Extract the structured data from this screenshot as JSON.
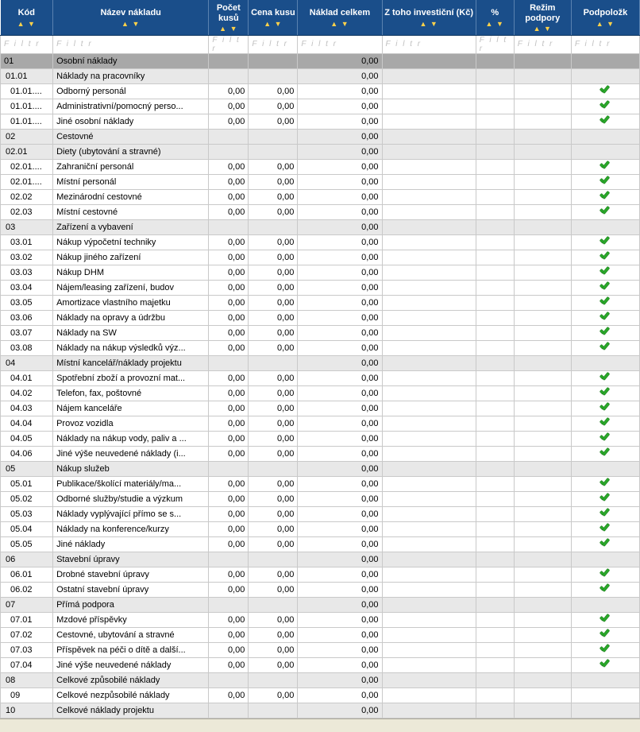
{
  "filter_placeholder": "F i l t r",
  "colors": {
    "header_bg": "#1a4e8a",
    "sort_arrows": "#ffd24a",
    "lvl0": "#a8a8a8",
    "lvl1": "#e8e8e8",
    "lvl2": "#ffffff",
    "border": "#c9c9c9",
    "check": "#2aa82a"
  },
  "columns": [
    {
      "key": "kod",
      "label": "Kód",
      "cls": "c-kod"
    },
    {
      "key": "name",
      "label": "Název nákladu",
      "cls": "c-name"
    },
    {
      "key": "cnt",
      "label": "Počet kusů",
      "cls": "c-cnt"
    },
    {
      "key": "price",
      "label": "Cena kusu",
      "cls": "c-price"
    },
    {
      "key": "total",
      "label": "Náklad celkem",
      "cls": "c-total"
    },
    {
      "key": "inv",
      "label": "Z toho investiční (Kč)",
      "cls": "c-inv"
    },
    {
      "key": "pct",
      "label": "%",
      "cls": "c-pct"
    },
    {
      "key": "mode",
      "label": "Režim podpory",
      "cls": "c-mode"
    },
    {
      "key": "sub",
      "label": "Podpoložk",
      "cls": "c-sub"
    }
  ],
  "rows": [
    {
      "lvl": 0,
      "kod": "01",
      "name": "Osobní náklady",
      "total": "0,00"
    },
    {
      "lvl": 1,
      "kod": "01.01",
      "name": "Náklady na pracovníky",
      "total": "0,00"
    },
    {
      "lvl": 2,
      "kod": "01.01....",
      "name": "Odborný personál",
      "cnt": "0,00",
      "price": "0,00",
      "total": "0,00",
      "sub": true
    },
    {
      "lvl": 2,
      "kod": "01.01....",
      "name": "Administrativní/pomocný perso...",
      "cnt": "0,00",
      "price": "0,00",
      "total": "0,00",
      "sub": true
    },
    {
      "lvl": 2,
      "kod": "01.01....",
      "name": "Jiné osobní náklady",
      "cnt": "0,00",
      "price": "0,00",
      "total": "0,00",
      "sub": true
    },
    {
      "lvl": 1,
      "kod": "02",
      "name": "Cestovné",
      "total": "0,00"
    },
    {
      "lvl": 1,
      "kod": "02.01",
      "name": "Diety (ubytování a stravné)",
      "total": "0,00"
    },
    {
      "lvl": 2,
      "kod": "02.01....",
      "name": "Zahraniční personál",
      "cnt": "0,00",
      "price": "0,00",
      "total": "0,00",
      "sub": true
    },
    {
      "lvl": 2,
      "kod": "02.01....",
      "name": "Místní personál",
      "cnt": "0,00",
      "price": "0,00",
      "total": "0,00",
      "sub": true
    },
    {
      "lvl": 2,
      "kod": "02.02",
      "name": "Mezinárodní cestovné",
      "cnt": "0,00",
      "price": "0,00",
      "total": "0,00",
      "sub": true
    },
    {
      "lvl": 2,
      "kod": "02.03",
      "name": "Místní cestovné",
      "cnt": "0,00",
      "price": "0,00",
      "total": "0,00",
      "sub": true
    },
    {
      "lvl": 1,
      "kod": "03",
      "name": "Zařízení a vybavení",
      "total": "0,00"
    },
    {
      "lvl": 2,
      "kod": "03.01",
      "name": "Nákup výpočetní techniky",
      "cnt": "0,00",
      "price": "0,00",
      "total": "0,00",
      "sub": true
    },
    {
      "lvl": 2,
      "kod": "03.02",
      "name": "Nákup jiného zařízení",
      "cnt": "0,00",
      "price": "0,00",
      "total": "0,00",
      "sub": true
    },
    {
      "lvl": 2,
      "kod": "03.03",
      "name": "Nákup DHM",
      "cnt": "0,00",
      "price": "0,00",
      "total": "0,00",
      "sub": true
    },
    {
      "lvl": 2,
      "kod": "03.04",
      "name": "Nájem/leasing zařízení, budov",
      "cnt": "0,00",
      "price": "0,00",
      "total": "0,00",
      "sub": true
    },
    {
      "lvl": 2,
      "kod": "03.05",
      "name": "Amortizace vlastního majetku",
      "cnt": "0,00",
      "price": "0,00",
      "total": "0,00",
      "sub": true
    },
    {
      "lvl": 2,
      "kod": "03.06",
      "name": "Náklady na opravy a údržbu",
      "cnt": "0,00",
      "price": "0,00",
      "total": "0,00",
      "sub": true
    },
    {
      "lvl": 2,
      "kod": "03.07",
      "name": "Náklady na SW",
      "cnt": "0,00",
      "price": "0,00",
      "total": "0,00",
      "sub": true
    },
    {
      "lvl": 2,
      "kod": "03.08",
      "name": "Náklady na nákup výsledků výz...",
      "cnt": "0,00",
      "price": "0,00",
      "total": "0,00",
      "sub": true
    },
    {
      "lvl": 1,
      "kod": "04",
      "name": "Místní kancelář/náklady projektu",
      "total": "0,00"
    },
    {
      "lvl": 2,
      "kod": "04.01",
      "name": "Spotřební zboží a provozní mat...",
      "cnt": "0,00",
      "price": "0,00",
      "total": "0,00",
      "sub": true
    },
    {
      "lvl": 2,
      "kod": "04.02",
      "name": "Telefon, fax, poštovné",
      "cnt": "0,00",
      "price": "0,00",
      "total": "0,00",
      "sub": true
    },
    {
      "lvl": 2,
      "kod": "04.03",
      "name": "Nájem kanceláře",
      "cnt": "0,00",
      "price": "0,00",
      "total": "0,00",
      "sub": true
    },
    {
      "lvl": 2,
      "kod": "04.04",
      "name": "Provoz vozidla",
      "cnt": "0,00",
      "price": "0,00",
      "total": "0,00",
      "sub": true
    },
    {
      "lvl": 2,
      "kod": "04.05",
      "name": "Náklady na nákup vody, paliv a ...",
      "cnt": "0,00",
      "price": "0,00",
      "total": "0,00",
      "sub": true
    },
    {
      "lvl": 2,
      "kod": "04.06",
      "name": "Jiné výše neuvedené náklady (i...",
      "cnt": "0,00",
      "price": "0,00",
      "total": "0,00",
      "sub": true
    },
    {
      "lvl": 1,
      "kod": "05",
      "name": "Nákup služeb",
      "total": "0,00"
    },
    {
      "lvl": 2,
      "kod": "05.01",
      "name": "Publikace/školící materiály/ma...",
      "cnt": "0,00",
      "price": "0,00",
      "total": "0,00",
      "sub": true
    },
    {
      "lvl": 2,
      "kod": "05.02",
      "name": "Odborné služby/studie a výzkum",
      "cnt": "0,00",
      "price": "0,00",
      "total": "0,00",
      "sub": true
    },
    {
      "lvl": 2,
      "kod": "05.03",
      "name": "Náklady vyplývající přímo se s...",
      "cnt": "0,00",
      "price": "0,00",
      "total": "0,00",
      "sub": true
    },
    {
      "lvl": 2,
      "kod": "05.04",
      "name": "Náklady na konference/kurzy",
      "cnt": "0,00",
      "price": "0,00",
      "total": "0,00",
      "sub": true
    },
    {
      "lvl": 2,
      "kod": "05.05",
      "name": "Jiné náklady",
      "cnt": "0,00",
      "price": "0,00",
      "total": "0,00",
      "sub": true
    },
    {
      "lvl": 1,
      "kod": "06",
      "name": "Stavební úpravy",
      "total": "0,00"
    },
    {
      "lvl": 2,
      "kod": "06.01",
      "name": "Drobné stavební úpravy",
      "cnt": "0,00",
      "price": "0,00",
      "total": "0,00",
      "sub": true
    },
    {
      "lvl": 2,
      "kod": "06.02",
      "name": "Ostatní stavební úpravy",
      "cnt": "0,00",
      "price": "0,00",
      "total": "0,00",
      "sub": true
    },
    {
      "lvl": 1,
      "kod": "07",
      "name": "Přímá podpora",
      "total": "0,00"
    },
    {
      "lvl": 2,
      "kod": "07.01",
      "name": "Mzdové příspěvky",
      "cnt": "0,00",
      "price": "0,00",
      "total": "0,00",
      "sub": true
    },
    {
      "lvl": 2,
      "kod": "07.02",
      "name": "Cestovné, ubytování a stravné",
      "cnt": "0,00",
      "price": "0,00",
      "total": "0,00",
      "sub": true
    },
    {
      "lvl": 2,
      "kod": "07.03",
      "name": "Příspěvek na péči o dítě a další...",
      "cnt": "0,00",
      "price": "0,00",
      "total": "0,00",
      "sub": true
    },
    {
      "lvl": 2,
      "kod": "07.04",
      "name": "Jiné výše neuvedené náklady",
      "cnt": "0,00",
      "price": "0,00",
      "total": "0,00",
      "sub": true
    },
    {
      "lvl": 1,
      "kod": "08",
      "name": "Celkové způsobilé náklady",
      "total": "0,00"
    },
    {
      "lvl": 2,
      "kod": "09",
      "name": "Celkové nezpůsobilé náklady",
      "cnt": "0,00",
      "price": "0,00",
      "total": "0,00"
    },
    {
      "lvl": 1,
      "kod": "10",
      "name": "Celkové náklady projektu",
      "total": "0,00"
    }
  ]
}
